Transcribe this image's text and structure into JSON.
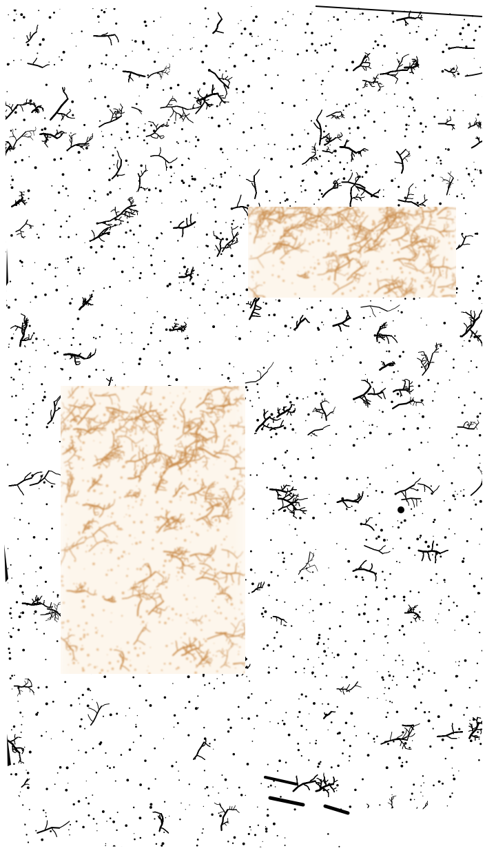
{
  "image": {
    "subject": "binarized-dendritic-pattern-with-original-color-insets",
    "background_color": "#ffffff",
    "pattern_color": "#000000",
    "inset_colors": {
      "paper": "#fdf6ec",
      "branch": "#c98c4c",
      "branch_light": "#e4b98a"
    },
    "insets_count": 2
  }
}
